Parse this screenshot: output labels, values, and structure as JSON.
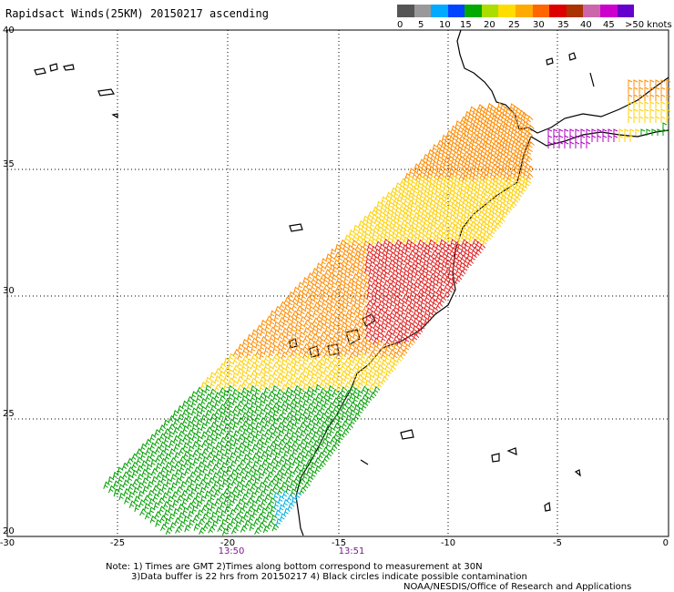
{
  "title": "Rapidsact Winds(25KM) 20150217 ascending",
  "legend": {
    "colors": [
      "#555555",
      "#999999",
      "#00aaff",
      "#0044ff",
      "#00aa00",
      "#aadd00",
      "#ffdd00",
      "#ffaa00",
      "#ff6600",
      "#dd0000",
      "#aa3300",
      "#cc66aa",
      "#cc00cc",
      "#6600cc"
    ],
    "labels": [
      "0",
      "5",
      "10",
      "15",
      "20",
      "25",
      "30",
      "35",
      "40",
      "45",
      ">50 knots"
    ]
  },
  "axes": {
    "lat_labels": [
      "40",
      "35",
      "30",
      "25",
      "20"
    ],
    "lon_labels": [
      "-30",
      "-25",
      "-20",
      "-15",
      "-10",
      "-5",
      "0"
    ]
  },
  "times": [
    "13:50",
    "13:51"
  ],
  "notes": {
    "line1": "Note: 1) Times are GMT 2)Times along bottom correspond to measurement at 30N",
    "line2": "3)Data buffer is 22 hrs from 20150217 4) Black circles indicate possible contamination",
    "line3": "NOAA/NESDIS/Office of Research and Applications"
  }
}
